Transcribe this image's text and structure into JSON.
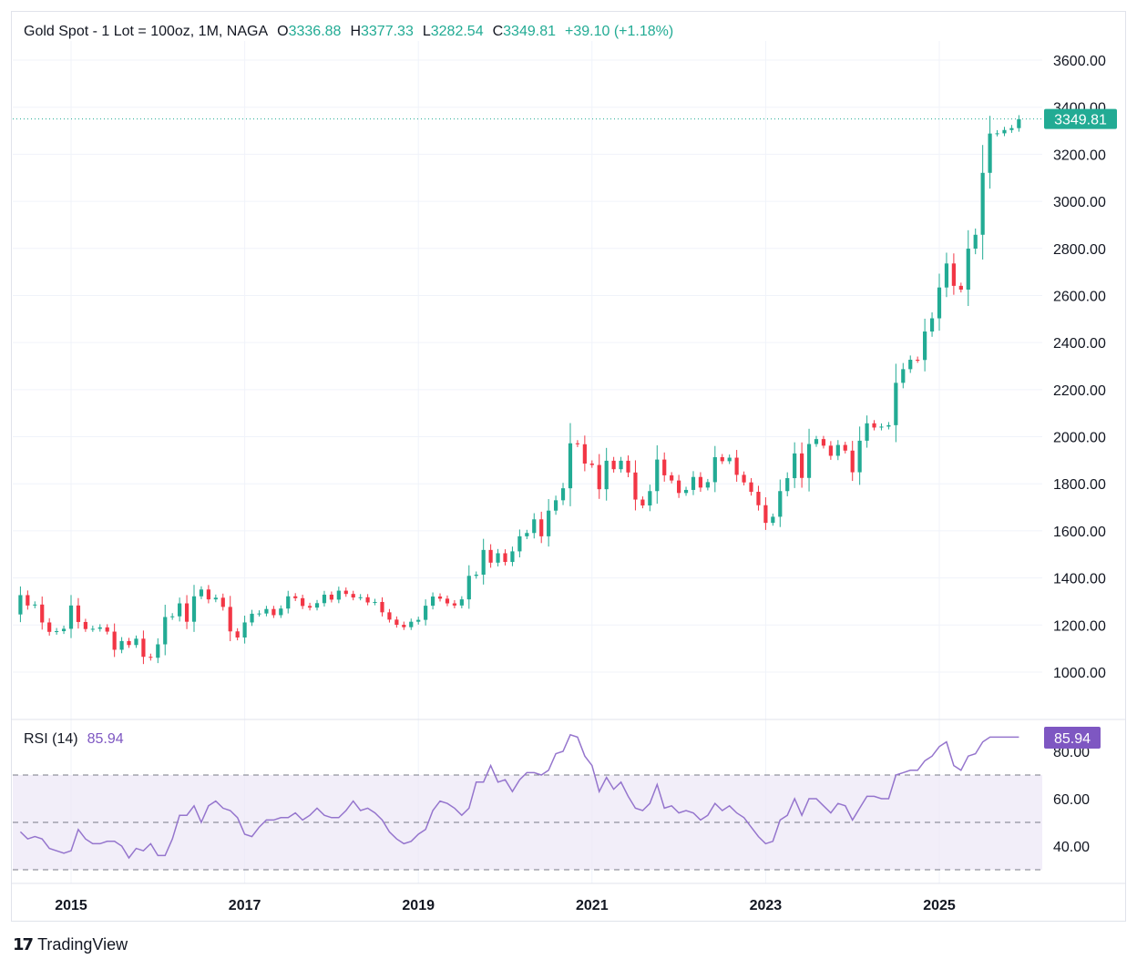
{
  "legend": {
    "symbol": "Gold  Spot - 1 Lot = 100oz, 1M, NAGA",
    "open_label": "O",
    "open": "3336.88",
    "high_label": "H",
    "high": "3377.33",
    "low_label": "L",
    "low": "3282.54",
    "close_label": "C",
    "close": "3349.81",
    "change": "+39.10 (+1.18%)"
  },
  "price_badge": "3349.81",
  "rsi_legend": {
    "label": "RSI (14)",
    "value": "85.94"
  },
  "rsi_badge": "85.94",
  "branding": "TradingView",
  "colors": {
    "up": "#22ab94",
    "down": "#f23645",
    "rsi": "#9575cd",
    "rsi_band": "#ede7f6",
    "grid": "#f0f3fa"
  },
  "chart_data": [
    {
      "type": "candlestick",
      "timeframe": "1M",
      "ylim": [
        860,
        3680
      ],
      "yticks": [
        "3600.00",
        "3400.00",
        "3200.00",
        "3000.00",
        "2800.00",
        "2600.00",
        "2400.00",
        "2200.00",
        "2000.00",
        "1800.00",
        "1600.00",
        "1400.00",
        "1200.00",
        "1000.00"
      ],
      "x_ticks": [
        {
          "label": "2015",
          "year": 2015
        },
        {
          "label": "2017",
          "year": 2017
        },
        {
          "label": "2019",
          "year": 2019
        },
        {
          "label": "2021",
          "year": 2021
        },
        {
          "label": "2023",
          "year": 2023
        },
        {
          "label": "2025",
          "year": 2025
        }
      ],
      "start": "2014-06",
      "closes": [
        1327,
        1283,
        1287,
        1211,
        1171,
        1174,
        1184,
        1283,
        1213,
        1183,
        1184,
        1190,
        1172,
        1095,
        1132,
        1115,
        1142,
        1065,
        1061,
        1118,
        1234,
        1237,
        1292,
        1214,
        1322,
        1351,
        1309,
        1316,
        1277,
        1173,
        1147,
        1211,
        1248,
        1249,
        1268,
        1242,
        1270,
        1322,
        1314,
        1281,
        1274,
        1293,
        1329,
        1308,
        1346,
        1332,
        1317,
        1318,
        1296,
        1298,
        1254,
        1223,
        1201,
        1191,
        1214,
        1222,
        1282,
        1321,
        1312,
        1292,
        1283,
        1309,
        1409,
        1414,
        1519,
        1465,
        1505,
        1468,
        1513,
        1577,
        1591,
        1649,
        1577,
        1686,
        1730,
        1781,
        1972,
        1968,
        1886,
        1880,
        1777,
        1898,
        1862,
        1898,
        1848,
        1733,
        1708,
        1769,
        1903,
        1836,
        1814,
        1761,
        1774,
        1829,
        1784,
        1807,
        1913,
        1896,
        1911,
        1838,
        1806,
        1766,
        1709,
        1634,
        1660,
        1769,
        1824,
        1929,
        1825,
        1969,
        1990,
        1962,
        1919,
        1965,
        1941,
        1849,
        1983,
        2057,
        2039,
        2043,
        2049,
        2229,
        2287,
        2327,
        2326,
        2447,
        2503,
        2634,
        2736,
        2641,
        2625,
        2799,
        2858,
        3121,
        3288,
        3289,
        3303,
        3311,
        3349
      ],
      "markers": [
        {
          "label": "current close",
          "value": 3349.81
        }
      ]
    },
    {
      "type": "line",
      "title": "RSI (14)",
      "ylim": [
        28,
        92
      ],
      "yticks": [
        "80.00",
        "60.00",
        "40.00"
      ],
      "bands": [
        30,
        50,
        70
      ],
      "values": [
        46,
        43,
        44,
        43,
        39,
        38,
        37,
        38,
        47,
        43,
        41,
        41,
        42,
        42,
        40,
        35,
        39,
        38,
        41,
        36,
        36,
        43,
        53,
        53,
        57,
        50,
        57,
        59,
        56,
        55,
        52,
        45,
        44,
        48,
        51,
        51,
        52,
        52,
        54,
        51,
        53,
        56,
        53,
        52,
        52,
        55,
        59,
        55,
        56,
        54,
        51,
        46,
        43,
        41,
        42,
        45,
        47,
        55,
        59,
        58,
        56,
        53,
        56,
        67,
        67,
        74,
        67,
        68,
        63,
        68,
        71,
        71,
        70,
        72,
        79,
        80,
        87,
        86,
        78,
        74,
        63,
        69,
        64,
        67,
        61,
        56,
        55,
        58,
        66,
        56,
        57,
        54,
        55,
        54,
        51,
        53,
        58,
        55,
        57,
        54,
        52,
        48,
        44,
        41,
        42,
        51,
        53,
        60,
        53,
        60,
        60,
        57,
        54,
        58,
        57,
        51,
        56,
        61,
        61,
        60,
        60,
        70,
        71,
        72,
        72,
        76,
        78,
        82,
        84,
        74,
        72,
        78,
        79,
        84,
        86,
        86,
        86,
        86,
        86
      ]
    }
  ]
}
